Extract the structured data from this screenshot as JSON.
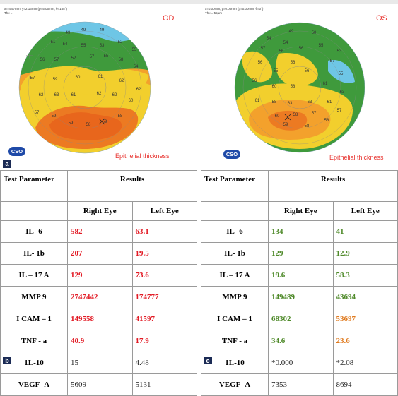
{
  "figure": {
    "panel_a": {
      "coords": "x=-4.57mm, y=2.16mm (ρ=5.06mm, θ=155°)\nThk =",
      "eye": "OD",
      "caption": "Epithelial thickness",
      "logo": "CSO",
      "letter": "a",
      "map_values": [
        "49",
        "49",
        "49",
        "51",
        "54",
        "55",
        "53",
        "52",
        "55",
        "56",
        "57",
        "52",
        "57",
        "55",
        "58",
        "54",
        "57",
        "59",
        "60",
        "61",
        "62",
        "62",
        "62",
        "63",
        "61",
        "62",
        "62",
        "60",
        "57",
        "59",
        "59",
        "58",
        "59",
        "58"
      ],
      "colors": {
        "blue": "#6ec6e6",
        "green": "#3f9a3c",
        "yellow": "#f2cf2d",
        "orange": "#f3a12c",
        "deep": "#ec7a22"
      }
    },
    "panel_b_letter": "b",
    "panel_c_letter": "c",
    "panel_d": {
      "coords": "x=0.00mm, y=0.00mm (ρ=0.00mm, θ=0°)\nThk = 55µm",
      "eye": "OS",
      "caption": "Epithelial thickness",
      "logo": "CSO",
      "map_values": [
        "49",
        "50",
        "54",
        "54",
        "57",
        "56",
        "56",
        "55",
        "53",
        "56",
        "56",
        "57",
        "55",
        "56",
        "55",
        "56",
        "60",
        "58",
        "61",
        "63",
        "61",
        "58",
        "63",
        "63",
        "61",
        "57",
        "60",
        "58",
        "57",
        "59",
        "58",
        "58"
      ]
    }
  },
  "tables": [
    {
      "header_param": "Test Parameter",
      "header_results": "Results",
      "col_right": "Right Eye",
      "col_left": "Left Eye",
      "rows": [
        {
          "param": "IL- 6",
          "right": "582",
          "left": "63.1",
          "rc": "red",
          "lc": "red"
        },
        {
          "param": "IL- 1b",
          "right": "207",
          "left": "19.5",
          "rc": "red",
          "lc": "red"
        },
        {
          "param": "IL – 17 A",
          "right": "129",
          "left": "73.6",
          "rc": "red",
          "lc": "red"
        },
        {
          "param": "MMP 9",
          "right": "2747442",
          "left": "174777",
          "rc": "red",
          "lc": "red"
        },
        {
          "param": "I CAM – 1",
          "right": "149558",
          "left": "41597",
          "rc": "red",
          "lc": "red"
        },
        {
          "param": "TNF - a",
          "right": "40.9",
          "left": "17.9",
          "rc": "red",
          "lc": "red"
        },
        {
          "param": "1L-10",
          "right": "15",
          "left": "4.48",
          "rc": "plain",
          "lc": "plain"
        },
        {
          "param": "VEGF- A",
          "right": "5609",
          "left": "5131",
          "rc": "plain",
          "lc": "plain"
        }
      ]
    },
    {
      "header_param": "Test Parameter",
      "header_results": "Results",
      "col_right": "Right Eye",
      "col_left": "Left Eye",
      "rows": [
        {
          "param": "IL- 6",
          "right": "134",
          "left": "41",
          "rc": "green",
          "lc": "green"
        },
        {
          "param": "IL- 1b",
          "right": "129",
          "left": "12.9",
          "rc": "green",
          "lc": "green"
        },
        {
          "param": "IL – 17 A",
          "right": "19.6",
          "left": "58.3",
          "rc": "green",
          "lc": "green"
        },
        {
          "param": "MMP 9",
          "right": "149489",
          "left": "43694",
          "rc": "green",
          "lc": "green"
        },
        {
          "param": "I CAM – 1",
          "right": "68302",
          "left": "53697",
          "rc": "green",
          "lc": "orange"
        },
        {
          "param": "TNF - a",
          "right": "34.6",
          "left": "23.6",
          "rc": "green",
          "lc": "orange"
        },
        {
          "param": "1L-10",
          "right": "*0.000",
          "left": "*2.08",
          "rc": "plain",
          "lc": "plain"
        },
        {
          "param": "VEGF- A",
          "right": "7353",
          "left": "8694",
          "rc": "plain",
          "lc": "plain"
        }
      ]
    }
  ]
}
